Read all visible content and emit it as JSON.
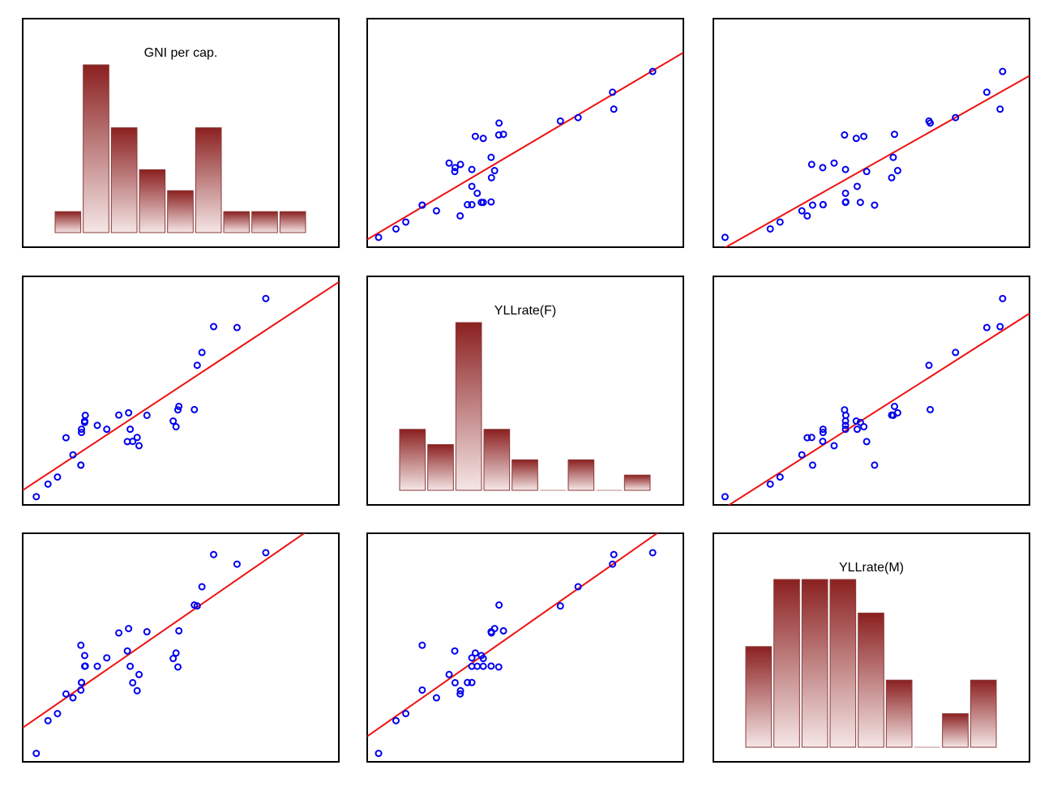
{
  "colors": {
    "point": "#0000ee",
    "fit_line": "#ee1111",
    "bar_top": "#8b2020",
    "bar_bottom": "#f5e6e6",
    "frame": "#000000"
  },
  "chart_data": {
    "type": "scatter-matrix",
    "variables": [
      "GNI per cap.",
      "YLLrate(F)",
      "YLLrate(M)"
    ],
    "axis_range": [
      0,
      1
    ],
    "fit": "linear regression line in each off-diagonal panel",
    "observations": [
      [
        0.043,
        0.036,
        0.037
      ],
      [
        0.08,
        0.091,
        0.18
      ],
      [
        0.11,
        0.122,
        0.211
      ],
      [
        0.137,
        0.294,
        0.297
      ],
      [
        0.159,
        0.219,
        0.28
      ],
      [
        0.184,
        0.174,
        0.314
      ],
      [
        0.184,
        0.174,
        0.51
      ],
      [
        0.186,
        0.331,
        0.347
      ],
      [
        0.186,
        0.317,
        0.347
      ],
      [
        0.196,
        0.367,
        0.418
      ],
      [
        0.196,
        0.361,
        0.465
      ],
      [
        0.198,
        0.392,
        0.419
      ],
      [
        0.236,
        0.348,
        0.418
      ],
      [
        0.266,
        0.331,
        0.455
      ],
      [
        0.304,
        0.393,
        0.564
      ],
      [
        0.331,
        0.277,
        0.485
      ],
      [
        0.335,
        0.403,
        0.583
      ],
      [
        0.34,
        0.331,
        0.418
      ],
      [
        0.348,
        0.278,
        0.346
      ],
      [
        0.362,
        0.295,
        0.311
      ],
      [
        0.368,
        0.259,
        0.382
      ],
      [
        0.393,
        0.392,
        0.569
      ],
      [
        0.476,
        0.367,
        0.452
      ],
      [
        0.485,
        0.342,
        0.476
      ],
      [
        0.491,
        0.416,
        0.415
      ],
      [
        0.494,
        0.431,
        0.573
      ],
      [
        0.543,
        0.417,
        0.686
      ],
      [
        0.552,
        0.611,
        0.682
      ],
      [
        0.567,
        0.667,
        0.766
      ],
      [
        0.604,
        0.78,
        0.907
      ],
      [
        0.678,
        0.776,
        0.865
      ],
      [
        0.769,
        0.903,
        0.915
      ]
    ],
    "histograms": [
      {
        "variable": "GNI per cap.",
        "counts": [
          1,
          8,
          5,
          3,
          2,
          5,
          1,
          1,
          1
        ]
      },
      {
        "variable": "YLLrate(F)",
        "counts": [
          4,
          3,
          11,
          4,
          2,
          0,
          2,
          0,
          1
        ]
      },
      {
        "variable": "YLLrate(M)",
        "counts": [
          3,
          5,
          5,
          5,
          4,
          2,
          0,
          1,
          2
        ]
      }
    ]
  }
}
